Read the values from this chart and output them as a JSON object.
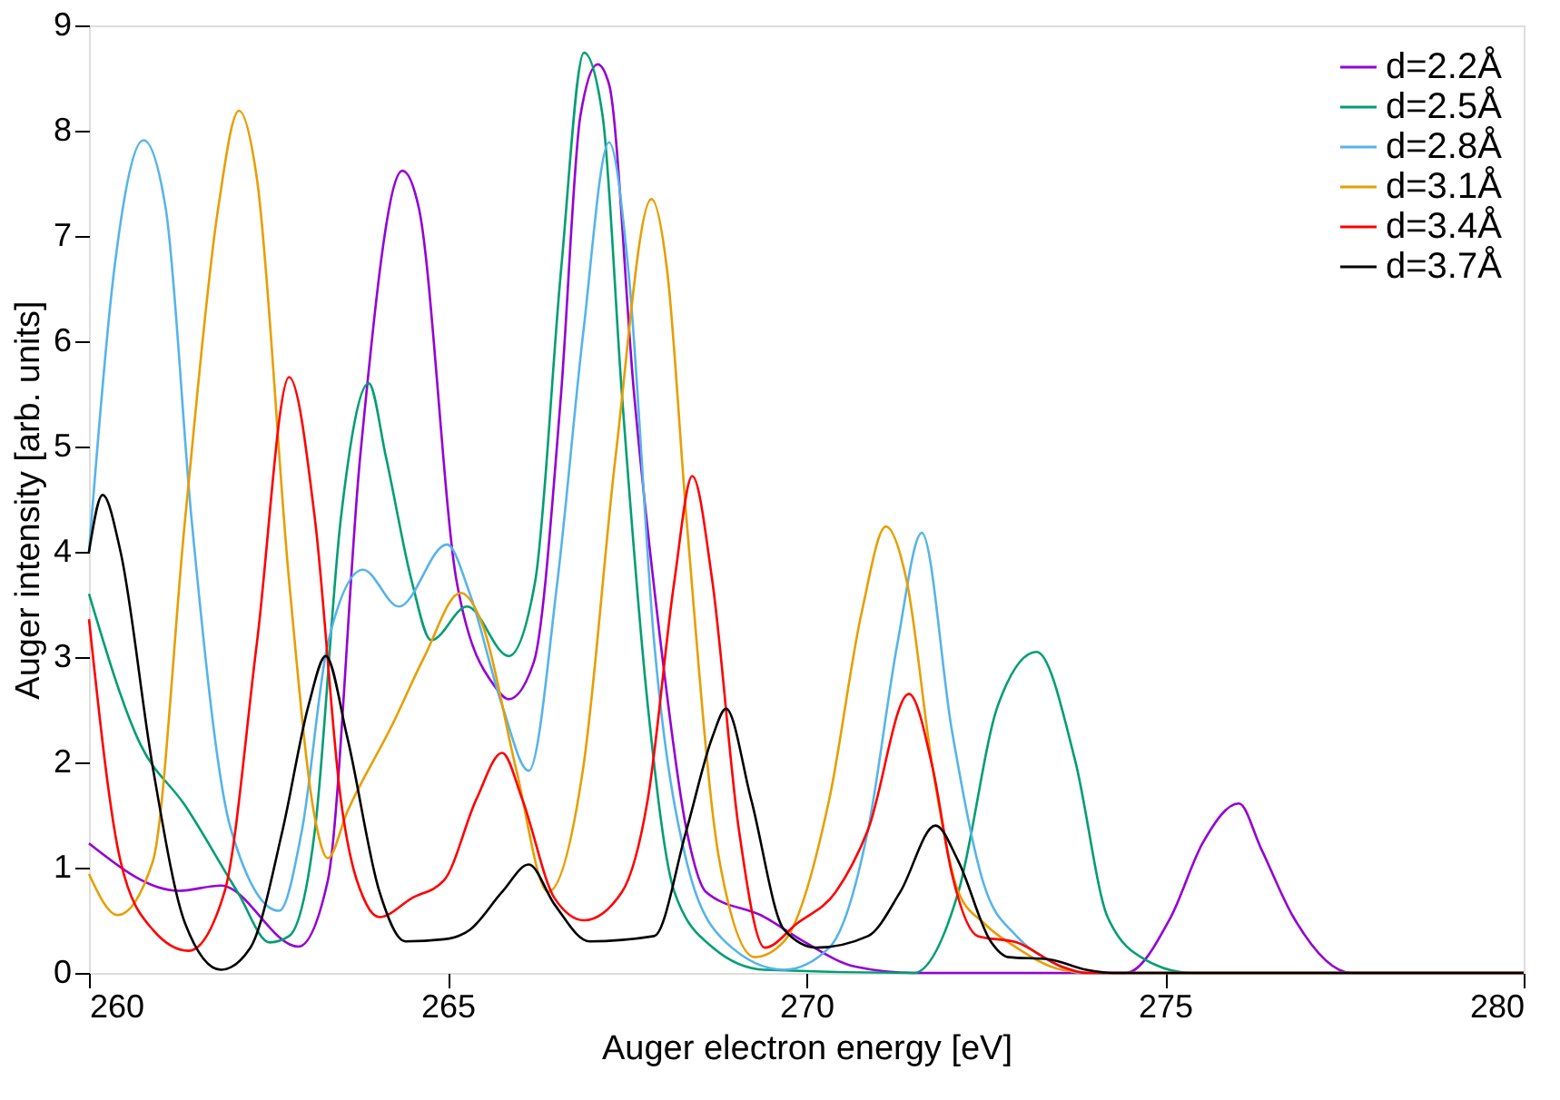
{
  "chart_data": {
    "type": "line",
    "xlabel": "Auger electron energy [eV]",
    "ylabel": "Auger intensity [arb. units]",
    "xlim": [
      260,
      280
    ],
    "ylim": [
      0,
      9
    ],
    "xticks": [
      260,
      265,
      270,
      275,
      280
    ],
    "yticks": [
      0,
      1,
      2,
      3,
      4,
      5,
      6,
      7,
      8,
      9
    ],
    "grid": false,
    "legend": "top right",
    "marker": "none",
    "line_style": "solid",
    "series": [
      {
        "name": "d=2.2Å",
        "color": "#9400d3",
        "x": [
          260,
          261.25,
          261.84,
          262.92,
          263.33,
          263.78,
          264.37,
          264.6,
          265.13,
          265.67,
          265.85,
          266.2,
          266.58,
          266.85,
          267.09,
          267.25,
          267.6,
          267.97,
          268.33,
          268.6,
          269.42,
          269.96,
          270.68,
          271.5,
          274.45,
          275.08,
          275.53,
          276.03,
          276.34,
          276.79,
          277.6,
          280
        ],
        "values": [
          1.23,
          0.78,
          0.83,
          0.25,
          0.88,
          4.9,
          7.62,
          7.26,
          3.7,
          2.71,
          2.6,
          2.95,
          5.49,
          8.14,
          8.63,
          8.44,
          5.49,
          3.13,
          1.36,
          0.77,
          0.53,
          0.3,
          0.06,
          0,
          0,
          0.53,
          1.24,
          1.61,
          1.18,
          0.53,
          0,
          0
        ]
      },
      {
        "name": "d=2.5Å",
        "color": "#009e73",
        "x": [
          260,
          260.71,
          261.34,
          262.07,
          262.52,
          262.79,
          263.15,
          263.51,
          263.9,
          264.14,
          264.5,
          264.77,
          265.27,
          265.85,
          266.22,
          266.58,
          266.9,
          267.16,
          267.43,
          267.79,
          268.16,
          268.7,
          269.42,
          271.5,
          272.12,
          272.67,
          273.21,
          273.75,
          274.2,
          274.74,
          275.37,
          280
        ],
        "values": [
          3.6,
          2.18,
          1.59,
          0.77,
          0.29,
          0.35,
          1.36,
          4.31,
          5.6,
          4.9,
          3.72,
          3.16,
          3.48,
          3.01,
          3.72,
          6.67,
          8.74,
          8.14,
          5.49,
          2.54,
          0.77,
          0.24,
          0.03,
          0,
          0.77,
          2.54,
          3.05,
          2.01,
          0.53,
          0.12,
          0,
          0
        ]
      },
      {
        "name": "d=2.8Å",
        "color": "#56b4e9",
        "x": [
          260,
          260.35,
          260.76,
          261.07,
          261.43,
          261.98,
          262.65,
          262.97,
          263.33,
          263.82,
          264.32,
          264.99,
          265.31,
          265.76,
          266.13,
          266.53,
          266.89,
          267.25,
          267.52,
          267.88,
          268.33,
          268.88,
          269.69,
          270.32,
          270.86,
          271.27,
          271.61,
          272.03,
          272.48,
          272.93,
          273.38,
          273.83,
          280
        ],
        "values": [
          4.0,
          6.67,
          7.91,
          7.26,
          4.31,
          1.36,
          0.59,
          1.36,
          3.13,
          3.83,
          3.48,
          4.07,
          3.6,
          2.54,
          1.92,
          3.72,
          6.08,
          7.89,
          6.67,
          3.13,
          1.06,
          0.29,
          0.03,
          0.24,
          1.36,
          3.13,
          4.18,
          2.3,
          0.83,
          0.35,
          0.12,
          0,
          0
        ]
      },
      {
        "name": "d=3.1Å",
        "color": "#e69f00",
        "x": [
          260,
          260.4,
          260.89,
          261.34,
          261.8,
          262.09,
          262.34,
          262.79,
          263.15,
          263.33,
          263.6,
          264.23,
          264.68,
          265.18,
          265.49,
          265.95,
          266.4,
          266.89,
          267.34,
          267.84,
          268.06,
          268.33,
          268.79,
          269.28,
          269.69,
          270.32,
          270.77,
          271.11,
          271.4,
          271.76,
          272.12,
          272.48,
          272.93,
          273.56,
          274,
          280
        ],
        "values": [
          0.94,
          0.55,
          1.06,
          4.31,
          7.26,
          8.19,
          7.55,
          3.72,
          1.47,
          1.09,
          1.53,
          2.36,
          3.01,
          3.61,
          3.3,
          1.95,
          0.77,
          1.95,
          4.9,
          7.35,
          6.67,
          4.31,
          1.06,
          0.15,
          0.3,
          1.65,
          3.42,
          4.24,
          3.72,
          1.95,
          0.77,
          0.47,
          0.24,
          0.03,
          0,
          0
        ]
      },
      {
        "name": "d=3.4Å",
        "color": "#ff0000",
        "x": [
          260,
          260.44,
          260.89,
          261.39,
          261.89,
          262.34,
          262.79,
          263.15,
          263.51,
          263.87,
          264.05,
          264.5,
          264.95,
          265.4,
          265.76,
          266.04,
          266.49,
          266.9,
          267.43,
          267.79,
          268.16,
          268.41,
          268.69,
          269.06,
          269.42,
          269.87,
          270.41,
          270.86,
          271.43,
          271.76,
          272.03,
          272.39,
          272.93,
          273.56,
          273.9,
          280
        ],
        "values": [
          3.36,
          1.06,
          0.41,
          0.21,
          0.77,
          3.13,
          5.66,
          4.31,
          1.65,
          0.65,
          0.53,
          0.71,
          0.88,
          1.65,
          2.09,
          1.65,
          0.71,
          0.5,
          0.77,
          1.65,
          3.72,
          4.72,
          3.72,
          1.36,
          0.24,
          0.47,
          0.77,
          1.36,
          2.65,
          1.95,
          0.94,
          0.35,
          0.29,
          0.06,
          0,
          0
        ]
      },
      {
        "name": "d=3.7Å",
        "color": "#000000",
        "x": [
          260,
          260.19,
          260.44,
          260.89,
          261.34,
          261.84,
          262.25,
          262.7,
          263.06,
          263.3,
          263.6,
          264.05,
          264.41,
          264.95,
          265.31,
          265.76,
          266.13,
          266.49,
          266.98,
          267.88,
          268.33,
          268.69,
          268.88,
          269.23,
          269.69,
          270.14,
          270.86,
          271.31,
          271.8,
          272.12,
          272.57,
          272.82,
          273.38,
          273.9,
          274.27,
          280
        ],
        "values": [
          4.0,
          4.54,
          4.0,
          1.95,
          0.47,
          0.03,
          0.24,
          1.36,
          2.54,
          3.01,
          2.24,
          0.77,
          0.3,
          0.32,
          0.41,
          0.77,
          1.03,
          0.65,
          0.3,
          0.35,
          1.36,
          2.24,
          2.51,
          1.65,
          0.41,
          0.24,
          0.35,
          0.77,
          1.4,
          1.06,
          0.3,
          0.15,
          0.13,
          0.03,
          0,
          0
        ]
      }
    ]
  }
}
